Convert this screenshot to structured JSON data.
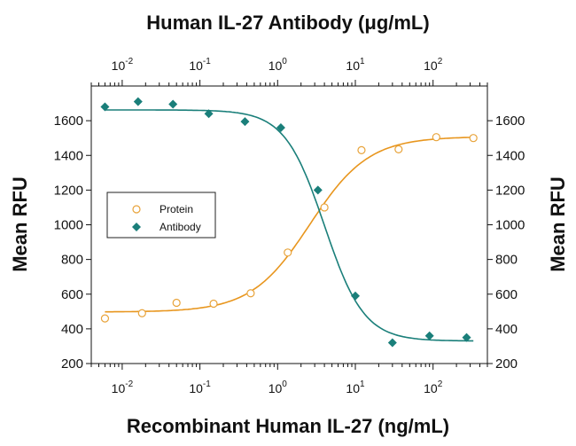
{
  "chart_data": {
    "type": "scatter",
    "title": "Human IL-27 Antibody (μg/mL)",
    "xlabel": "Recombinant Human IL-27 (ng/mL)",
    "ylabel": "Mean RFU",
    "ylabel_right": "Mean RFU",
    "x_scale": "log",
    "xlim": [
      0.004,
      500
    ],
    "ylim": [
      200,
      1800
    ],
    "yticks": [
      200,
      400,
      600,
      800,
      1000,
      1200,
      1400,
      1600
    ],
    "xticks_bottom": [
      {
        "value": 0.01,
        "base": "10",
        "exp": "-2"
      },
      {
        "value": 0.1,
        "base": "10",
        "exp": "-1"
      },
      {
        "value": 1,
        "base": "10",
        "exp": "0"
      },
      {
        "value": 10,
        "base": "10",
        "exp": "1"
      },
      {
        "value": 100,
        "base": "10",
        "exp": "2"
      }
    ],
    "top_axis": {
      "label": "Human IL-27 Antibody (μg/mL)",
      "ticks": [
        {
          "value": 0.01,
          "base": "10",
          "exp": "-2"
        },
        {
          "value": 0.1,
          "base": "10",
          "exp": "-1"
        },
        {
          "value": 1,
          "base": "10",
          "exp": "0"
        },
        {
          "value": 10,
          "base": "10",
          "exp": "1"
        },
        {
          "value": 100,
          "base": "10",
          "exp": "2"
        }
      ]
    },
    "legend_position": "left-middle",
    "series": [
      {
        "name": "Protein",
        "marker": "open-circle",
        "color": "#E8A33A",
        "line_color": "#E8961E",
        "axis": "bottom",
        "points": [
          {
            "x": 0.006,
            "y": 460
          },
          {
            "x": 0.018,
            "y": 490
          },
          {
            "x": 0.05,
            "y": 550
          },
          {
            "x": 0.15,
            "y": 545
          },
          {
            "x": 0.45,
            "y": 605
          },
          {
            "x": 1.35,
            "y": 840
          },
          {
            "x": 4,
            "y": 1100
          },
          {
            "x": 12,
            "y": 1430
          },
          {
            "x": 36,
            "y": 1435
          },
          {
            "x": 110,
            "y": 1505
          },
          {
            "x": 330,
            "y": 1500
          }
        ],
        "fit": {
          "bottom": 497,
          "top": 1508,
          "ec50": 2.6,
          "hill": 1.15
        }
      },
      {
        "name": "Antibody",
        "marker": "filled-diamond",
        "color": "#1A7F7A",
        "line_color": "#1A7F7A",
        "axis": "top",
        "points": [
          {
            "x": 0.006,
            "y": 1680
          },
          {
            "x": 0.016,
            "y": 1710
          },
          {
            "x": 0.045,
            "y": 1695
          },
          {
            "x": 0.13,
            "y": 1640
          },
          {
            "x": 0.38,
            "y": 1595
          },
          {
            "x": 1.1,
            "y": 1560
          },
          {
            "x": 3.3,
            "y": 1200
          },
          {
            "x": 10,
            "y": 590
          },
          {
            "x": 30,
            "y": 320
          },
          {
            "x": 90,
            "y": 360
          },
          {
            "x": 270,
            "y": 350
          }
        ],
        "fit": {
          "bottom": 330,
          "top": 1662,
          "ec50": 4.0,
          "hill": 1.7
        }
      }
    ]
  }
}
